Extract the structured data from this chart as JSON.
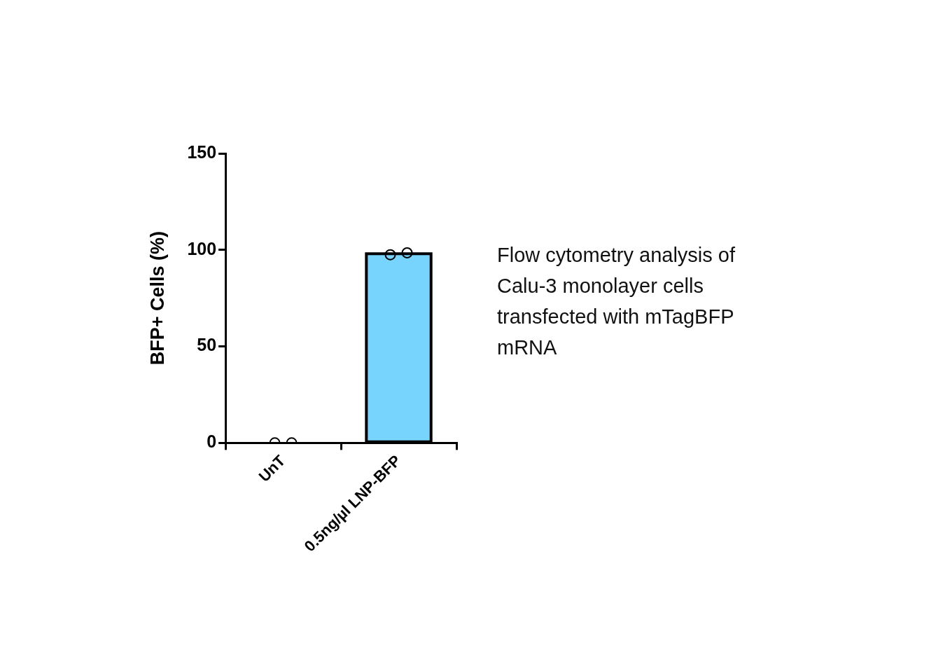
{
  "chart_data": {
    "type": "bar",
    "ylabel": "BFP+ Cells (%)",
    "categories": [
      "UnT",
      "0.5ng/µl LNP-BFP"
    ],
    "marker": "circle",
    "ylim": [
      0,
      150
    ],
    "yticks": [
      0,
      50,
      100,
      150
    ],
    "series": [
      {
        "color": "#77d4fd",
        "values": [
          0,
          98
        ]
      },
      {
        "type": "scatter",
        "color": "#000000",
        "x": [
          "UnT",
          "UnT",
          "0.5ng/µl LNP-BFP",
          "0.5ng/µl LNP-BFP"
        ],
        "values": [
          0,
          0,
          97.5,
          98.5
        ]
      }
    ],
    "annotations": [
      "Flow cytometry analysis of Calu-3 monolayer cells transfected with mTagBFP mRNA"
    ]
  }
}
